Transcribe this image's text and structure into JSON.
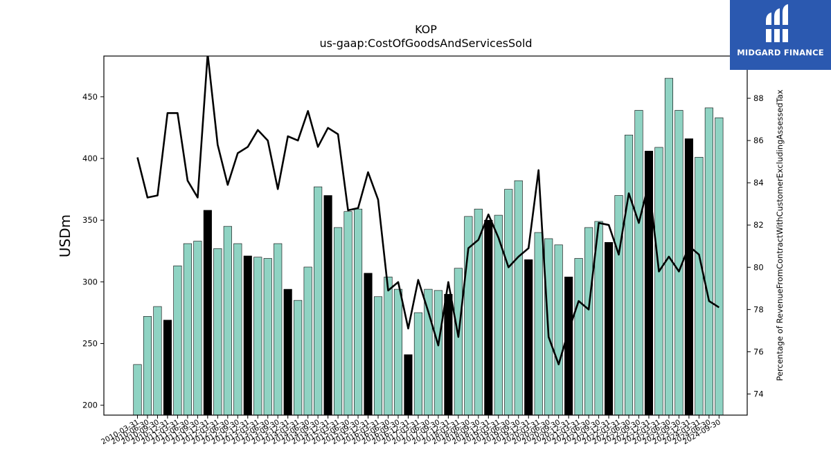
{
  "header": {
    "ticker": "KOP",
    "metric": "us-gaap:CostOfGoodsAndServicesSold"
  },
  "logo": {
    "text": "MIDGARD FINANCE",
    "icon": "midgard-logo-icon",
    "background": "#2b59b0"
  },
  "chart_data": {
    "type": "bar",
    "ylabel": "USDm",
    "y2label": "Percentage of RevenueFromContractWithCustomerExcludingAssessedTax",
    "ylim": [
      192,
      483
    ],
    "y2lim": [
      73.0,
      90.0
    ],
    "yticks": [
      200,
      250,
      300,
      350,
      400,
      450
    ],
    "y2ticks": [
      74,
      76,
      78,
      80,
      82,
      84,
      86,
      88
    ],
    "colors": {
      "bar": "#8fd3c3",
      "bar_q4": "#000000",
      "line": "#000000"
    },
    "categories": [
      "2010-03-31",
      "2010-06-30",
      "2010-09-30",
      "2010-12-31",
      "2011-03-31",
      "2011-06-30",
      "2011-09-30",
      "2011-12-31",
      "2012-03-31",
      "2012-06-30",
      "2012-09-30",
      "2012-12-31",
      "2013-03-31",
      "2013-06-30",
      "2013-09-30",
      "2013-12-31",
      "2014-03-31",
      "2014-06-30",
      "2014-09-30",
      "2014-12-31",
      "2015-03-31",
      "2015-06-30",
      "2015-09-30",
      "2015-12-31",
      "2016-03-31",
      "2016-06-30",
      "2016-09-30",
      "2016-12-31",
      "2017-03-31",
      "2017-06-30",
      "2017-09-30",
      "2017-12-31",
      "2018-03-31",
      "2018-06-30",
      "2018-09-30",
      "2018-12-31",
      "2019-03-31",
      "2019-06-30",
      "2019-09-30",
      "2019-12-31",
      "2020-03-31",
      "2020-06-30",
      "2020-09-30",
      "2020-12-31",
      "2021-03-31",
      "2021-06-30",
      "2021-09-30",
      "2021-12-31",
      "2022-03-31",
      "2022-06-30",
      "2022-09-30",
      "2022-12-31",
      "2023-03-31",
      "2023-06-30",
      "2023-09-30",
      "2023-12-31",
      "2024-03-31",
      "2024-06-30",
      "2024-09-30"
    ],
    "series": [
      {
        "kind": "bar",
        "axis": "left",
        "values": [
          233,
          272,
          280,
          269,
          313,
          331,
          333,
          358,
          327,
          345,
          331,
          321,
          320,
          319,
          331,
          294,
          285,
          312,
          377,
          370,
          344,
          357,
          359,
          307,
          288,
          304,
          294,
          241,
          275,
          294,
          293,
          290,
          311,
          353,
          359,
          350,
          354,
          375,
          382,
          318,
          340,
          335,
          330,
          304,
          319,
          344,
          349,
          332,
          370,
          419,
          439,
          406,
          409,
          465,
          439,
          416,
          401,
          441,
          433
        ]
      },
      {
        "kind": "line",
        "axis": "right",
        "values": [
          85.2,
          83.3,
          83.4,
          87.3,
          87.3,
          84.1,
          83.3,
          90.1,
          85.8,
          83.9,
          85.4,
          85.7,
          86.5,
          86.0,
          83.7,
          86.2,
          86.0,
          87.4,
          85.7,
          86.6,
          86.3,
          82.7,
          82.8,
          84.5,
          83.2,
          78.9,
          79.3,
          77.1,
          79.4,
          77.9,
          76.3,
          79.3,
          76.7,
          80.9,
          81.3,
          82.5,
          81.4,
          80.0,
          80.5,
          80.9,
          84.6,
          76.7,
          75.4,
          77.0,
          78.4,
          78.0,
          82.1,
          82.0,
          80.6,
          83.5,
          82.1,
          84.0,
          79.8,
          80.5,
          79.8,
          81.0,
          80.6,
          78.4,
          78.1
        ]
      }
    ]
  }
}
